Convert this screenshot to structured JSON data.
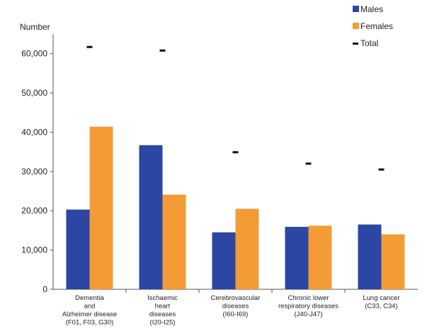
{
  "chart_data": {
    "type": "bar",
    "ylabel": "Number",
    "ylim": [
      0,
      65000
    ],
    "yticks": [
      0,
      10000,
      20000,
      30000,
      40000,
      50000,
      60000
    ],
    "ytick_labels": [
      "0",
      "10,000",
      "20,000",
      "30,000",
      "40,000",
      "50,000",
      "60,000"
    ],
    "grid": false,
    "legend_position": "top-right",
    "categories": [
      [
        "Dementia",
        "and",
        "Alzheimer disease",
        "(F01, F03, G30)"
      ],
      [
        "Ischaemic",
        "heart",
        "diseases",
        "(I20-I25)"
      ],
      [
        "Cerebrovascular",
        "diseases",
        "(I60-I69)"
      ],
      [
        "Chronic lower",
        "respiratory diseases",
        "(J40-J47)"
      ],
      [
        "Lung cancer",
        "(C33, C34)"
      ]
    ],
    "series": [
      {
        "name": "Males",
        "kind": "bar",
        "color": "#2B46A3",
        "values": [
          20300,
          36700,
          14500,
          15900,
          16500
        ]
      },
      {
        "name": "Females",
        "kind": "bar",
        "color": "#F39C36",
        "values": [
          41400,
          24100,
          20500,
          16200,
          14000
        ]
      },
      {
        "name": "Total",
        "kind": "marker",
        "color": "#111111",
        "values": [
          61700,
          60800,
          34900,
          32000,
          30500
        ]
      }
    ]
  }
}
